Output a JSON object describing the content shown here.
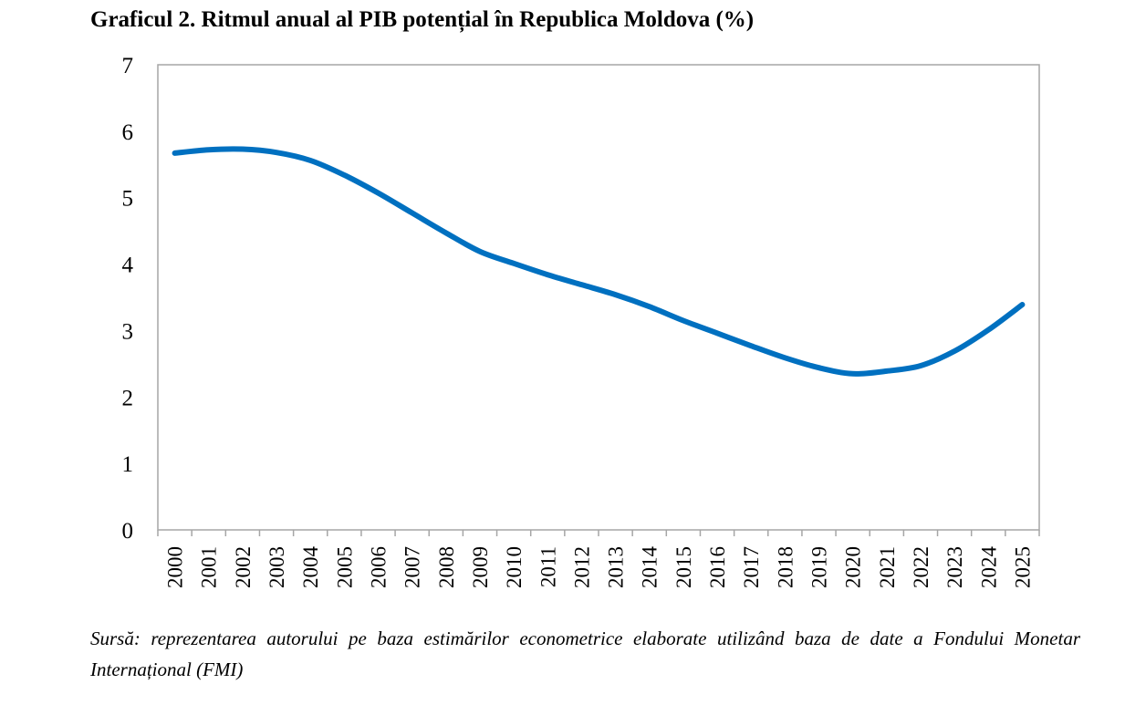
{
  "title": "Graficul 2. Ritmul anual al PIB potențial în Republica Moldova (%)",
  "source_note": "Sursă: reprezentarea autorului pe baza estimărilor econometrice elaborate utilizând baza de date a Fondului Monetar Internațional (FMI)",
  "colors": {
    "line": "#0070C0",
    "plot_border": "#A6A6A6",
    "axis": "#A6A6A6"
  },
  "chart_data": {
    "type": "line",
    "title": "Graficul 2. Ritmul anual al PIB potențial în Republica Moldova (%)",
    "xlabel": "",
    "ylabel": "",
    "ylim": [
      0,
      7
    ],
    "yticks": [
      "0",
      "1",
      "2",
      "3",
      "4",
      "5",
      "6",
      "7"
    ],
    "grid": false,
    "legend": "none",
    "categories": [
      "2000",
      "2001",
      "2002",
      "2003",
      "2004",
      "2005",
      "2006",
      "2007",
      "2008",
      "2009",
      "2010",
      "2011",
      "2012",
      "2013",
      "2014",
      "2015",
      "2016",
      "2017",
      "2018",
      "2019",
      "2020",
      "2021",
      "2022",
      "2023",
      "2024",
      "2025"
    ],
    "series": [
      {
        "values": [
          5.67,
          5.72,
          5.73,
          5.68,
          5.56,
          5.34,
          5.07,
          4.77,
          4.47,
          4.19,
          4.01,
          3.84,
          3.69,
          3.54,
          3.36,
          3.15,
          2.96,
          2.77,
          2.59,
          2.44,
          2.35,
          2.39,
          2.47,
          2.69,
          3.01,
          3.39
        ]
      }
    ]
  }
}
